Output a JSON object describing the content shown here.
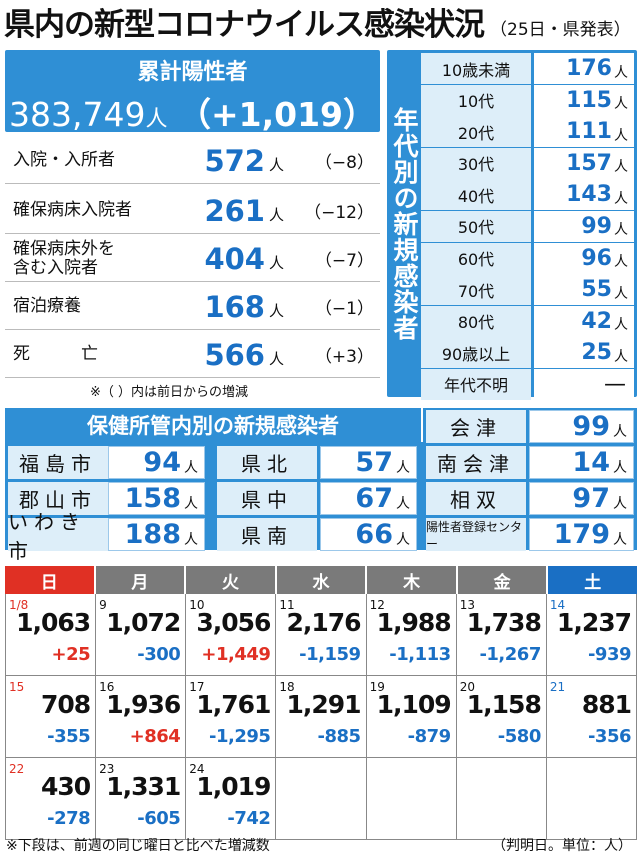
{
  "header": {
    "title": "県内の新型コロナウイルス感染状況",
    "subtitle": "（25日・県発表）"
  },
  "cumulative": {
    "label": "累計陽性者",
    "value": "383,749",
    "unit": "人",
    "diff": "（+1,019）"
  },
  "stats": [
    {
      "label": "入院・入所者",
      "value": "572",
      "unit": "人",
      "diff": "（−8）"
    },
    {
      "label": "確保病床入院者",
      "value": "261",
      "unit": "人",
      "diff": "（−12）"
    },
    {
      "label": "確保病床外を\n含む入院者",
      "value": "404",
      "unit": "人",
      "diff": "（−7）"
    },
    {
      "label": "宿泊療養",
      "value": "168",
      "unit": "人",
      "diff": "（−1）"
    },
    {
      "label": "死　　　亡",
      "value": "566",
      "unit": "人",
      "diff": "（+3）"
    }
  ],
  "stats_note": "※（ ）内は前日からの増減",
  "age": {
    "label": "年代別の新規感染者",
    "rows": [
      {
        "label": "10歳未満",
        "value": "176",
        "unit": "人"
      },
      {
        "label": "10代",
        "value": "115",
        "unit": "人"
      },
      {
        "label": "20代",
        "value": "111",
        "unit": "人"
      },
      {
        "label": "30代",
        "value": "157",
        "unit": "人"
      },
      {
        "label": "40代",
        "value": "143",
        "unit": "人"
      },
      {
        "label": "50代",
        "value": "99",
        "unit": "人"
      },
      {
        "label": "60代",
        "value": "96",
        "unit": "人"
      },
      {
        "label": "70代",
        "value": "55",
        "unit": "人"
      },
      {
        "label": "80代",
        "value": "42",
        "unit": "人"
      },
      {
        "label": "90歳以上",
        "value": "25",
        "unit": "人"
      },
      {
        "label": "年代不明",
        "value": "—",
        "unit": ""
      }
    ]
  },
  "health_centers": {
    "title": "保健所管内別の新規感染者",
    "items": [
      {
        "label": "会津",
        "value": "99",
        "unit": "人"
      },
      {
        "label": "福島市",
        "value": "94",
        "unit": "人"
      },
      {
        "label": "県北",
        "value": "57",
        "unit": "人"
      },
      {
        "label": "南会津",
        "value": "14",
        "unit": "人"
      },
      {
        "label": "郡山市",
        "value": "158",
        "unit": "人"
      },
      {
        "label": "県中",
        "value": "67",
        "unit": "人"
      },
      {
        "label": "相双",
        "value": "97",
        "unit": "人"
      },
      {
        "label": "いわき市",
        "value": "188",
        "unit": "人"
      },
      {
        "label": "県南",
        "value": "66",
        "unit": "人"
      },
      {
        "label": "陽性者登録センター",
        "value": "179",
        "unit": "人"
      }
    ]
  },
  "calendar": {
    "weekdays": [
      {
        "label": "日",
        "color": "#e03024"
      },
      {
        "label": "月",
        "color": "#7a7a7a"
      },
      {
        "label": "火",
        "color": "#7a7a7a"
      },
      {
        "label": "水",
        "color": "#7a7a7a"
      },
      {
        "label": "木",
        "color": "#7a7a7a"
      },
      {
        "label": "金",
        "color": "#7a7a7a"
      },
      {
        "label": "土",
        "color": "#1a6fc4"
      }
    ],
    "days": [
      {
        "date": "1/8",
        "count": "1,063",
        "change": "+25"
      },
      {
        "date": "9",
        "count": "1,072",
        "change": "-300"
      },
      {
        "date": "10",
        "count": "3,056",
        "change": "+1,449"
      },
      {
        "date": "11",
        "count": "2,176",
        "change": "-1,159"
      },
      {
        "date": "12",
        "count": "1,988",
        "change": "-1,113"
      },
      {
        "date": "13",
        "count": "1,738",
        "change": "-1,267"
      },
      {
        "date": "14",
        "count": "1,237",
        "change": "-939"
      },
      {
        "date": "15",
        "count": "708",
        "change": "-355"
      },
      {
        "date": "16",
        "count": "1,936",
        "change": "+864"
      },
      {
        "date": "17",
        "count": "1,761",
        "change": "-1,295"
      },
      {
        "date": "18",
        "count": "1,291",
        "change": "-885"
      },
      {
        "date": "19",
        "count": "1,109",
        "change": "-879"
      },
      {
        "date": "20",
        "count": "1,158",
        "change": "-580"
      },
      {
        "date": "21",
        "count": "881",
        "change": "-356"
      },
      {
        "date": "22",
        "count": "430",
        "change": "-278"
      },
      {
        "date": "23",
        "count": "1,331",
        "change": "-605"
      },
      {
        "date": "24",
        "count": "1,019",
        "change": "-742"
      },
      {
        "date": "",
        "count": "",
        "change": ""
      },
      {
        "date": "",
        "count": "",
        "change": ""
      },
      {
        "date": "",
        "count": "",
        "change": ""
      },
      {
        "date": "",
        "count": "",
        "change": ""
      }
    ]
  },
  "footer": {
    "note": "※下段は、前週の同じ曜日と比べた増減数",
    "unit": "（判明日。単位：人）"
  },
  "colors": {
    "accent": "#2f8fd5",
    "plus": "#e03024",
    "minus": "#1a6fc4",
    "light": "#ddeef9"
  }
}
